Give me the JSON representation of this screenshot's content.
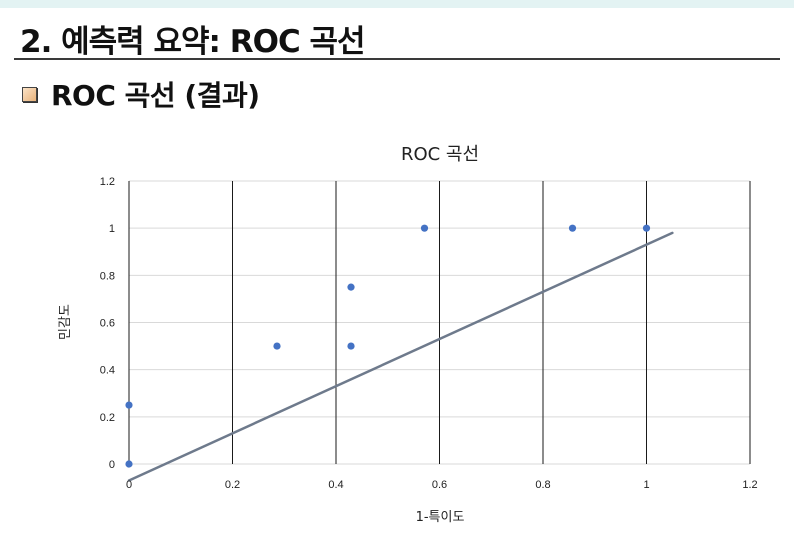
{
  "slide": {
    "title": "2. 예측력 요약: ROC 곡선",
    "section_heading": "ROC 곡선 (결과)"
  },
  "colors": {
    "point": "#4472c4",
    "trendline": "#6e7a8c",
    "gridline": "#1a1a1a",
    "rule": "#3a3a3a"
  },
  "chart_data": {
    "type": "scatter",
    "title": "ROC 곡선",
    "xlabel": "1-특이도",
    "ylabel": "민감도",
    "xlim": [
      0,
      1.2
    ],
    "ylim": [
      0,
      1.2
    ],
    "x_ticks": [
      "0",
      "0.2",
      "0.4",
      "0.6",
      "0.8",
      "1",
      "1.2"
    ],
    "y_ticks": [
      "0",
      "0.2",
      "0.4",
      "0.6",
      "0.8",
      "1",
      "1.2"
    ],
    "vertical_grid": true,
    "horizontal_grid": true,
    "points": [
      {
        "x": 0,
        "y": 0
      },
      {
        "x": 0,
        "y": 0.25
      },
      {
        "x": 0.286,
        "y": 0.5
      },
      {
        "x": 0.429,
        "y": 0.5
      },
      {
        "x": 0.429,
        "y": 0.75
      },
      {
        "x": 0.571,
        "y": 1
      },
      {
        "x": 0.857,
        "y": 1
      },
      {
        "x": 1,
        "y": 1
      }
    ],
    "trendline": {
      "x": [
        0,
        1.05
      ],
      "y": [
        -0.07,
        0.98
      ]
    }
  }
}
